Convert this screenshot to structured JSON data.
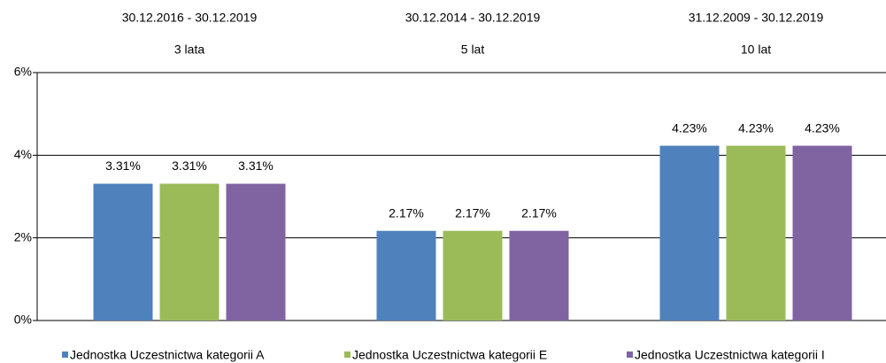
{
  "chart_data": {
    "type": "bar",
    "categories": [
      "3 lata",
      "5 lat",
      "10 lat"
    ],
    "category_ranges": [
      "30.12.2016 - 30.12.2019",
      "30.12.2014 - 30.12.2019",
      "31.12.2009 - 30.12.2019"
    ],
    "series": [
      {
        "name": "Jednostka Uczestnictwa kategorii A",
        "color": "#4f81bd",
        "values": [
          3.31,
          2.17,
          4.23
        ],
        "value_labels": [
          "3.31%",
          "2.17%",
          "4.23%"
        ]
      },
      {
        "name": "Jednostka Uczestnictwa kategorii E",
        "color": "#9bbb59",
        "values": [
          3.31,
          2.17,
          4.23
        ],
        "value_labels": [
          "3.31%",
          "2.17%",
          "4.23%"
        ]
      },
      {
        "name": "Jednostka Uczestnictwa kategorii I",
        "color": "#8064a2",
        "values": [
          3.31,
          2.17,
          4.23
        ],
        "value_labels": [
          "3.31%",
          "2.17%",
          "4.23%"
        ]
      }
    ],
    "ylim": [
      0,
      6
    ],
    "yticks": [
      {
        "value": 0,
        "label": "0%"
      },
      {
        "value": 2,
        "label": "2%"
      },
      {
        "value": 4,
        "label": "4%"
      },
      {
        "value": 6,
        "label": "6%"
      }
    ],
    "grid": true,
    "legend": "bottom"
  }
}
